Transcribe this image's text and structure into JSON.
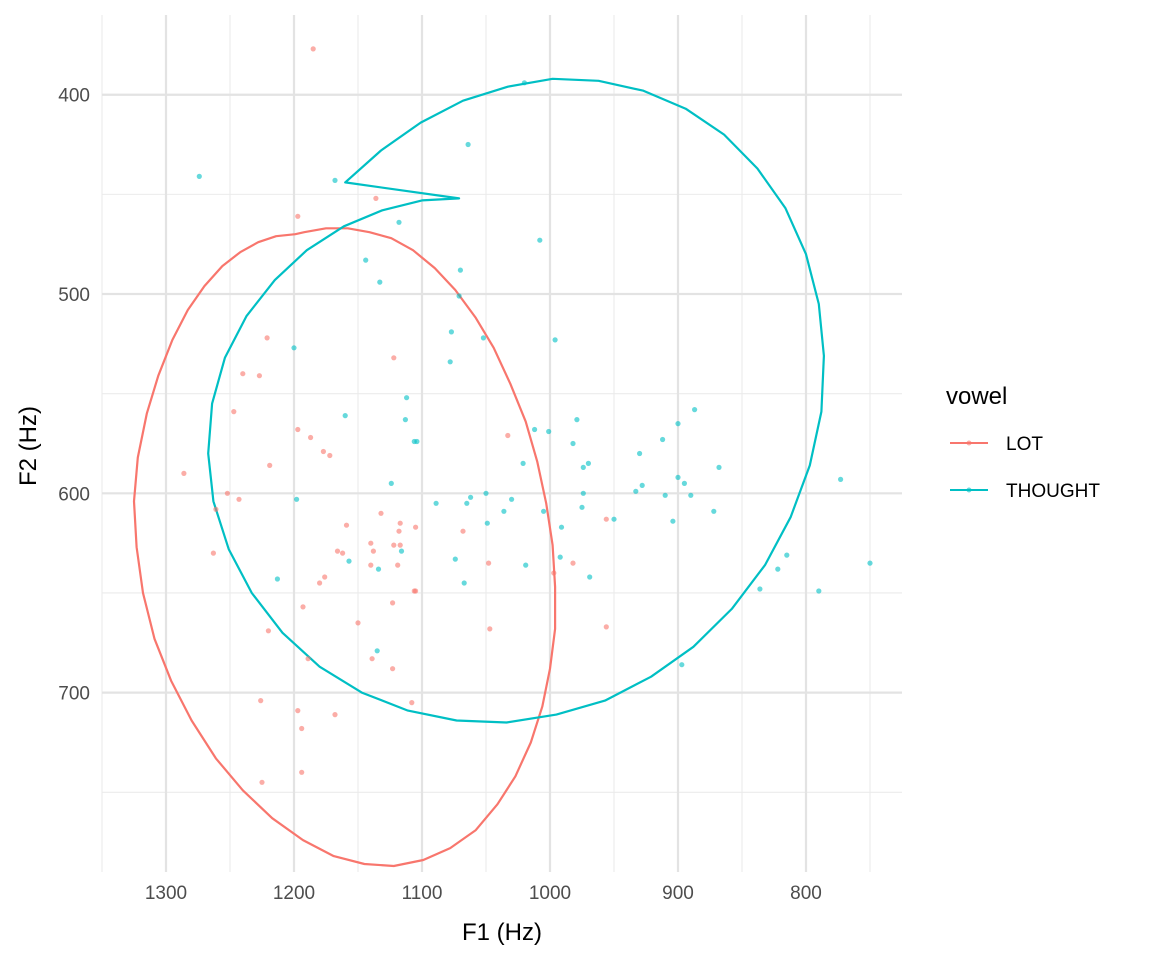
{
  "chart_data": {
    "type": "scatter",
    "title": "",
    "xlabel": "F1 (Hz)",
    "ylabel": "F2 (Hz)",
    "x_reversed": true,
    "y_reversed": true,
    "xlim": [
      1350,
      725
    ],
    "ylim": [
      360,
      790
    ],
    "x_ticks": [
      1300,
      1200,
      1100,
      1000,
      900,
      800
    ],
    "y_ticks": [
      400,
      500,
      600,
      700
    ],
    "grid": true,
    "legend": {
      "title": "vowel",
      "position": "right"
    },
    "series": [
      {
        "name": "LOT",
        "color": "#F8766D",
        "points": [
          [
            1185,
            377
          ],
          [
            1197,
            461
          ],
          [
            1136,
            452
          ],
          [
            1221,
            522
          ],
          [
            1240,
            540
          ],
          [
            1227,
            541
          ],
          [
            1122,
            532
          ],
          [
            1247,
            559
          ],
          [
            1197,
            568
          ],
          [
            1187,
            572
          ],
          [
            1177,
            579
          ],
          [
            1172,
            581
          ],
          [
            1286,
            590
          ],
          [
            1219,
            586
          ],
          [
            1252,
            600
          ],
          [
            1243,
            603
          ],
          [
            1033,
            571
          ],
          [
            1261,
            608
          ],
          [
            1132,
            610
          ],
          [
            1159,
            616
          ],
          [
            1117,
            615
          ],
          [
            1118,
            619
          ],
          [
            1105,
            617
          ],
          [
            1068,
            619
          ],
          [
            1140,
            625
          ],
          [
            1122,
            626
          ],
          [
            1138,
            629
          ],
          [
            1117,
            626
          ],
          [
            1166,
            629
          ],
          [
            1162,
            630
          ],
          [
            1263,
            630
          ],
          [
            1140,
            636
          ],
          [
            1119,
            636
          ],
          [
            1048,
            635
          ],
          [
            982,
            635
          ],
          [
            956,
            613
          ],
          [
            997,
            640
          ],
          [
            1176,
            642
          ],
          [
            1180,
            645
          ],
          [
            1106,
            649
          ],
          [
            1105,
            649
          ],
          [
            1123,
            655
          ],
          [
            1193,
            657
          ],
          [
            1150,
            665
          ],
          [
            1220,
            669
          ],
          [
            1047,
            668
          ],
          [
            956,
            667
          ],
          [
            1189,
            683
          ],
          [
            1139,
            683
          ],
          [
            1123,
            688
          ],
          [
            1226,
            704
          ],
          [
            1108,
            705
          ],
          [
            1197,
            709
          ],
          [
            1168,
            711
          ],
          [
            1194,
            718
          ],
          [
            1194,
            740
          ],
          [
            1225,
            745
          ]
        ]
      },
      {
        "name": "THOUGHT",
        "color": "#00BFC4",
        "points": [
          [
            1020,
            394
          ],
          [
            1064,
            425
          ],
          [
            1274,
            441
          ],
          [
            1168,
            443
          ],
          [
            1118,
            464
          ],
          [
            1008,
            473
          ],
          [
            1070,
            488
          ],
          [
            1144,
            483
          ],
          [
            1133,
            494
          ],
          [
            1071,
            501
          ],
          [
            1077,
            519
          ],
          [
            1052,
            522
          ],
          [
            1200,
            527
          ],
          [
            996,
            523
          ],
          [
            1078,
            534
          ],
          [
            1112,
            552
          ],
          [
            1160,
            561
          ],
          [
            1113,
            563
          ],
          [
            1106,
            574
          ],
          [
            1104,
            574
          ],
          [
            979,
            563
          ],
          [
            887,
            558
          ],
          [
            1012,
            568
          ],
          [
            1001,
            569
          ],
          [
            982,
            575
          ],
          [
            912,
            573
          ],
          [
            900,
            565
          ],
          [
            974,
            587
          ],
          [
            970,
            585
          ],
          [
            1021,
            585
          ],
          [
            930,
            580
          ],
          [
            868,
            587
          ],
          [
            1124,
            595
          ],
          [
            974,
            600
          ],
          [
            928,
            596
          ],
          [
            1030,
            603
          ],
          [
            1050,
            600
          ],
          [
            1062,
            602
          ],
          [
            1065,
            605
          ],
          [
            1089,
            605
          ],
          [
            1198,
            603
          ],
          [
            933,
            599
          ],
          [
            910,
            601
          ],
          [
            900,
            592
          ],
          [
            895,
            595
          ],
          [
            890,
            601
          ],
          [
            975,
            607
          ],
          [
            1036,
            609
          ],
          [
            1005,
            609
          ],
          [
            872,
            609
          ],
          [
            950,
            613
          ],
          [
            904,
            614
          ],
          [
            991,
            617
          ],
          [
            773,
            593
          ],
          [
            992,
            632
          ],
          [
            1074,
            633
          ],
          [
            1157,
            634
          ],
          [
            1049,
            615
          ],
          [
            1019,
            636
          ],
          [
            1067,
            645
          ],
          [
            1116,
            629
          ],
          [
            969,
            642
          ],
          [
            1213,
            643
          ],
          [
            836,
            648
          ],
          [
            815,
            631
          ],
          [
            822,
            638
          ],
          [
            790,
            649
          ],
          [
            750,
            635
          ],
          [
            1134,
            638
          ],
          [
            1135,
            679
          ],
          [
            897,
            686
          ]
        ]
      }
    ],
    "ellipses": [
      {
        "series": "LOT",
        "points": [
          [
            1199,
            470
          ],
          [
            1214,
            471
          ],
          [
            1228,
            474
          ],
          [
            1242,
            479
          ],
          [
            1256,
            486
          ],
          [
            1270,
            496
          ],
          [
            1283,
            508
          ],
          [
            1295,
            523
          ],
          [
            1306,
            541
          ],
          [
            1315,
            560
          ],
          [
            1322,
            582
          ],
          [
            1325,
            604
          ],
          [
            1323,
            627
          ],
          [
            1318,
            650
          ],
          [
            1309,
            673
          ],
          [
            1296,
            694
          ],
          [
            1280,
            714
          ],
          [
            1261,
            733
          ],
          [
            1240,
            749
          ],
          [
            1217,
            763
          ],
          [
            1193,
            774
          ],
          [
            1169,
            782
          ],
          [
            1145,
            786
          ],
          [
            1122,
            787
          ],
          [
            1099,
            784
          ],
          [
            1078,
            778
          ],
          [
            1058,
            769
          ],
          [
            1041,
            756
          ],
          [
            1027,
            742
          ],
          [
            1015,
            725
          ],
          [
            1006,
            707
          ],
          [
            1000,
            688
          ],
          [
            996,
            668
          ],
          [
            996,
            647
          ],
          [
            998,
            626
          ],
          [
            1003,
            605
          ],
          [
            1010,
            584
          ],
          [
            1019,
            564
          ],
          [
            1031,
            545
          ],
          [
            1044,
            527
          ],
          [
            1058,
            512
          ],
          [
            1074,
            498
          ],
          [
            1090,
            487
          ],
          [
            1107,
            478
          ],
          [
            1124,
            472
          ],
          [
            1141,
            469
          ],
          [
            1158,
            467
          ],
          [
            1175,
            467
          ],
          [
            1192,
            469
          ],
          [
            1199,
            470
          ]
        ]
      },
      {
        "series": "THOUGHT",
        "points": [
          [
            1071,
            452
          ],
          [
            1100,
            453
          ],
          [
            1131,
            458
          ],
          [
            1161,
            466
          ],
          [
            1190,
            478
          ],
          [
            1215,
            493
          ],
          [
            1237,
            511
          ],
          [
            1254,
            532
          ],
          [
            1264,
            555
          ],
          [
            1267,
            580
          ],
          [
            1263,
            604
          ],
          [
            1251,
            628
          ],
          [
            1233,
            650
          ],
          [
            1209,
            670
          ],
          [
            1180,
            687
          ],
          [
            1147,
            700
          ],
          [
            1111,
            709
          ],
          [
            1073,
            714
          ],
          [
            1034,
            715
          ],
          [
            995,
            711
          ],
          [
            957,
            704
          ],
          [
            921,
            692
          ],
          [
            888,
            677
          ],
          [
            858,
            658
          ],
          [
            832,
            636
          ],
          [
            812,
            612
          ],
          [
            797,
            586
          ],
          [
            788,
            559
          ],
          [
            786,
            531
          ],
          [
            790,
            505
          ],
          [
            800,
            480
          ],
          [
            816,
            457
          ],
          [
            838,
            437
          ],
          [
            864,
            420
          ],
          [
            894,
            407
          ],
          [
            927,
            398
          ],
          [
            962,
            393
          ],
          [
            998,
            392
          ],
          [
            1033,
            396
          ],
          [
            1068,
            403
          ],
          [
            1101,
            414
          ],
          [
            1132,
            428
          ],
          [
            1160,
            444
          ],
          [
            1071,
            452
          ]
        ]
      }
    ]
  }
}
